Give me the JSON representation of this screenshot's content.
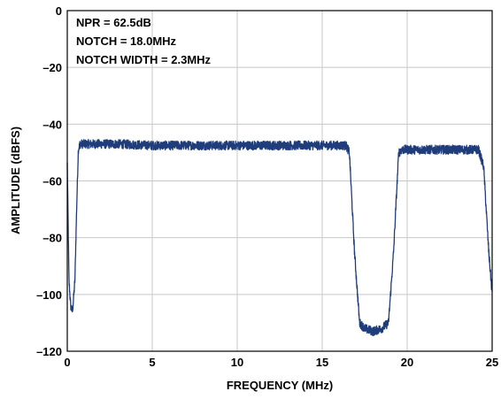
{
  "chart_data": {
    "type": "line",
    "xlabel": "FREQUENCY (MHz)",
    "ylabel": "AMPLITUDE (dBFS)",
    "xlim": [
      0,
      25
    ],
    "ylim": [
      -120,
      0
    ],
    "x_ticks": [
      0,
      5,
      10,
      15,
      20,
      25
    ],
    "y_ticks": [
      0,
      -20,
      -40,
      -60,
      -80,
      -100,
      -120
    ],
    "x_tick_labels": [
      "0",
      "5",
      "10",
      "15",
      "20",
      "25"
    ],
    "y_tick_labels": [
      "0",
      "–20",
      "–40",
      "–60",
      "–80",
      "–100",
      "–120"
    ],
    "grid": true,
    "annotations": [
      "NPR = 62.5dB",
      "NOTCH = 18.0MHz",
      "NOTCH WIDTH = 2.3MHz"
    ],
    "series_color": "#1f3d7a",
    "series": [
      {
        "x": [
          0.0,
          0.1,
          0.2,
          0.3,
          0.35,
          0.45,
          0.55,
          0.65,
          0.75,
          0.9,
          1.5,
          3,
          5,
          7,
          9,
          11,
          13,
          15,
          16.4,
          16.6,
          16.9,
          17.2,
          17.5,
          18.0,
          18.5,
          18.9,
          19.2,
          19.5,
          19.7,
          20,
          22,
          24.2,
          24.5,
          24.8,
          25.0
        ],
        "y": [
          -54,
          -95,
          -104,
          -106,
          -103,
          -95,
          -70,
          -49,
          -47,
          -47,
          -47,
          -47,
          -47.5,
          -47.5,
          -47.5,
          -47.5,
          -47.5,
          -47.5,
          -47.5,
          -50,
          -85,
          -110,
          -112,
          -113,
          -112,
          -110,
          -85,
          -50,
          -49,
          -49,
          -49,
          -49,
          -55,
          -85,
          -100
        ]
      }
    ]
  }
}
